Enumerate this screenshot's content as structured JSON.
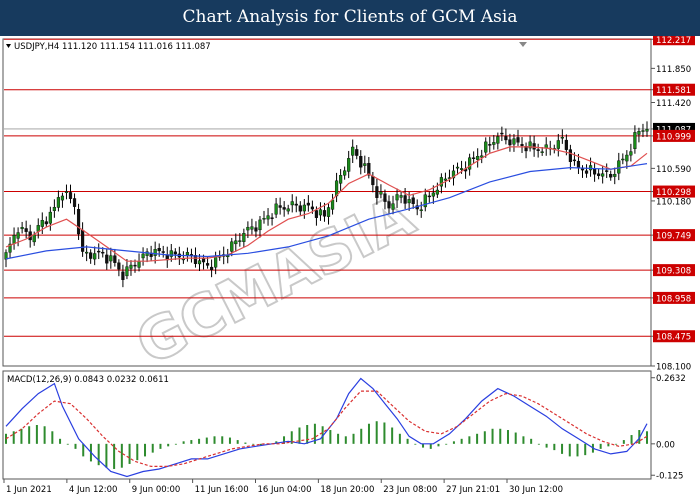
{
  "header": {
    "title": "Chart Analysis for Clients of GCM Asia"
  },
  "chart_data": [
    {
      "type": "candlestick",
      "symbol_info": "USDJPY,H4  111.120 111.154 111.016 111.087",
      "title": "",
      "xlabel": "",
      "ylabel": "",
      "ylim": [
        108.1,
        112.22
      ],
      "y_ticks": [
        "112.217",
        "111.850",
        "111.581",
        "111.420",
        "111.087",
        "110.999",
        "110.590",
        "110.298",
        "110.180",
        "109.749",
        "109.308",
        "108.958",
        "108.475",
        "108.100"
      ],
      "x_ticks": [
        "1 Jun 2021",
        "4 Jun 12:00",
        "9 Jun 00:00",
        "11 Jun 16:00",
        "16 Jun 04:00",
        "18 Jun 20:00",
        "23 Jun 08:00",
        "27 Jun 21:01",
        "30 Jun 12:00"
      ],
      "level_lines": [
        112.217,
        111.581,
        110.999,
        110.298,
        109.749,
        109.308,
        108.958,
        108.475
      ],
      "level_line_color": "#cc0000",
      "current_price": 111.087,
      "close_path": [
        [
          0,
          109.5
        ],
        [
          3,
          109.85
        ],
        [
          6,
          109.72
        ],
        [
          9,
          109.9
        ],
        [
          12,
          110.08
        ],
        [
          14,
          110.32
        ],
        [
          17,
          110.12
        ],
        [
          19,
          109.5
        ],
        [
          23,
          109.52
        ],
        [
          26,
          109.45
        ],
        [
          29,
          109.25
        ],
        [
          32,
          109.4
        ],
        [
          36,
          109.55
        ],
        [
          41,
          109.5
        ],
        [
          46,
          109.48
        ],
        [
          50,
          109.35
        ],
        [
          55,
          109.55
        ],
        [
          59,
          109.78
        ],
        [
          63,
          109.9
        ],
        [
          67,
          110.08
        ],
        [
          71,
          110.12
        ],
        [
          75,
          110.1
        ],
        [
          79,
          109.98
        ],
        [
          83,
          110.5
        ],
        [
          86,
          110.82
        ],
        [
          89,
          110.6
        ],
        [
          92,
          110.28
        ],
        [
          95,
          110.12
        ],
        [
          98,
          110.25
        ],
        [
          102,
          110.08
        ],
        [
          106,
          110.3
        ],
        [
          110,
          110.52
        ],
        [
          114,
          110.62
        ],
        [
          118,
          110.8
        ],
        [
          122,
          111.0
        ],
        [
          126,
          110.92
        ],
        [
          130,
          110.85
        ],
        [
          134,
          110.82
        ],
        [
          138,
          110.95
        ],
        [
          141,
          110.62
        ],
        [
          145,
          110.55
        ],
        [
          150,
          110.5
        ],
        [
          153,
          110.7
        ],
        [
          155,
          110.85
        ],
        [
          157,
          111.08
        ],
        [
          159,
          111.1
        ]
      ],
      "series": [
        {
          "name": "",
          "color": "#e05050",
          "values": [
            [
              0,
              109.6
            ],
            [
              5,
              109.7
            ],
            [
              10,
              109.85
            ],
            [
              15,
              109.95
            ],
            [
              20,
              109.78
            ],
            [
              25,
              109.6
            ],
            [
              30,
              109.42
            ],
            [
              35,
              109.42
            ],
            [
              40,
              109.44
            ],
            [
              45,
              109.46
            ],
            [
              50,
              109.46
            ],
            [
              55,
              109.5
            ],
            [
              60,
              109.62
            ],
            [
              65,
              109.8
            ],
            [
              70,
              109.95
            ],
            [
              75,
              110.02
            ],
            [
              80,
              110.15
            ],
            [
              85,
              110.4
            ],
            [
              90,
              110.52
            ],
            [
              95,
              110.38
            ],
            [
              100,
              110.25
            ],
            [
              105,
              110.32
            ],
            [
              110,
              110.45
            ],
            [
              115,
              110.62
            ],
            [
              120,
              110.78
            ],
            [
              125,
              110.86
            ],
            [
              130,
              110.86
            ],
            [
              135,
              110.84
            ],
            [
              140,
              110.78
            ],
            [
              145,
              110.68
            ],
            [
              150,
              110.58
            ],
            [
              155,
              110.62
            ],
            [
              159,
              110.78
            ]
          ]
        },
        {
          "name": "",
          "color": "#2a4ee0",
          "values": [
            [
              0,
              109.45
            ],
            [
              10,
              109.55
            ],
            [
              20,
              109.6
            ],
            [
              30,
              109.55
            ],
            [
              40,
              109.5
            ],
            [
              50,
              109.48
            ],
            [
              60,
              109.52
            ],
            [
              70,
              109.6
            ],
            [
              80,
              109.74
            ],
            [
              90,
              109.95
            ],
            [
              100,
              110.08
            ],
            [
              110,
              110.22
            ],
            [
              120,
              110.42
            ],
            [
              130,
              110.55
            ],
            [
              140,
              110.6
            ],
            [
              150,
              110.58
            ],
            [
              159,
              110.65
            ]
          ]
        }
      ],
      "watermark": "GCMASIA"
    },
    {
      "type": "bar",
      "label": "MACD(12,26,9) 0.0843 0.0232 0.0611",
      "ylim": [
        -0.14,
        0.29
      ],
      "y_ticks": [
        "0.2632",
        "0.00",
        "-0.125"
      ],
      "histogram": [
        0.04,
        0.05,
        0.06,
        0.07,
        0.075,
        0.07,
        0.05,
        0.02,
        0.0,
        -0.02,
        -0.05,
        -0.07,
        -0.085,
        -0.095,
        -0.1,
        -0.095,
        -0.08,
        -0.065,
        -0.05,
        -0.035,
        -0.02,
        -0.01,
        0.0,
        0.01,
        0.015,
        0.02,
        0.025,
        0.03,
        0.03,
        0.025,
        0.015,
        0.005,
        0.0,
        -0.005,
        -0.003,
        0.01,
        0.03,
        0.05,
        0.065,
        0.075,
        0.08,
        0.07,
        0.055,
        0.04,
        0.03,
        0.04,
        0.06,
        0.08,
        0.09,
        0.085,
        0.065,
        0.04,
        0.02,
        0.0,
        -0.015,
        -0.02,
        -0.01,
        0.0,
        0.01,
        0.02,
        0.03,
        0.04,
        0.05,
        0.06,
        0.06,
        0.055,
        0.045,
        0.03,
        0.02,
        0.0,
        -0.015,
        -0.025,
        -0.04,
        -0.05,
        -0.05,
        -0.045,
        -0.035,
        -0.02,
        -0.01,
        0.0,
        0.015,
        0.035,
        0.055,
        0.05
      ],
      "series": [
        {
          "name": "",
          "color": "#2a3fe0",
          "values": [
            [
              0,
              0.07
            ],
            [
              4,
              0.14
            ],
            [
              8,
              0.2
            ],
            [
              12,
              0.24
            ],
            [
              14,
              0.15
            ],
            [
              18,
              0.02
            ],
            [
              22,
              -0.05
            ],
            [
              26,
              -0.11
            ],
            [
              30,
              -0.13
            ],
            [
              34,
              -0.11
            ],
            [
              38,
              -0.1
            ],
            [
              42,
              -0.08
            ],
            [
              46,
              -0.06
            ],
            [
              50,
              -0.06
            ],
            [
              54,
              -0.04
            ],
            [
              58,
              -0.02
            ],
            [
              62,
              -0.01
            ],
            [
              66,
              0.0
            ],
            [
              70,
              0.01
            ],
            [
              74,
              0.0
            ],
            [
              78,
              0.02
            ],
            [
              82,
              0.1
            ],
            [
              85,
              0.2
            ],
            [
              88,
              0.26
            ],
            [
              91,
              0.22
            ],
            [
              94,
              0.16
            ],
            [
              97,
              0.1
            ],
            [
              100,
              0.03
            ],
            [
              103,
              0.0
            ],
            [
              106,
              0.0
            ],
            [
              110,
              0.04
            ],
            [
              114,
              0.1
            ],
            [
              118,
              0.17
            ],
            [
              122,
              0.22
            ],
            [
              126,
              0.19
            ],
            [
              130,
              0.15
            ],
            [
              134,
              0.11
            ],
            [
              138,
              0.06
            ],
            [
              142,
              0.02
            ],
            [
              146,
              -0.02
            ],
            [
              150,
              -0.04
            ],
            [
              154,
              -0.03
            ],
            [
              157,
              0.02
            ],
            [
              159,
              0.08
            ]
          ]
        },
        {
          "name": "",
          "color": "#d93030",
          "values": [
            [
              0,
              0.02
            ],
            [
              4,
              0.06
            ],
            [
              8,
              0.12
            ],
            [
              12,
              0.17
            ],
            [
              16,
              0.16
            ],
            [
              20,
              0.1
            ],
            [
              24,
              0.03
            ],
            [
              28,
              -0.03
            ],
            [
              32,
              -0.07
            ],
            [
              36,
              -0.09
            ],
            [
              40,
              -0.09
            ],
            [
              44,
              -0.08
            ],
            [
              48,
              -0.06
            ],
            [
              52,
              -0.04
            ],
            [
              56,
              -0.02
            ],
            [
              60,
              -0.01
            ],
            [
              64,
              0.0
            ],
            [
              68,
              0.0
            ],
            [
              72,
              0.01
            ],
            [
              76,
              0.02
            ],
            [
              80,
              0.06
            ],
            [
              84,
              0.14
            ],
            [
              88,
              0.21
            ],
            [
              92,
              0.21
            ],
            [
              96,
              0.15
            ],
            [
              100,
              0.09
            ],
            [
              104,
              0.05
            ],
            [
              108,
              0.04
            ],
            [
              112,
              0.07
            ],
            [
              116,
              0.12
            ],
            [
              120,
              0.17
            ],
            [
              124,
              0.2
            ],
            [
              128,
              0.19
            ],
            [
              132,
              0.16
            ],
            [
              136,
              0.12
            ],
            [
              140,
              0.08
            ],
            [
              144,
              0.04
            ],
            [
              148,
              0.01
            ],
            [
              152,
              -0.01
            ],
            [
              156,
              0.0
            ],
            [
              159,
              0.03
            ]
          ]
        }
      ]
    }
  ]
}
